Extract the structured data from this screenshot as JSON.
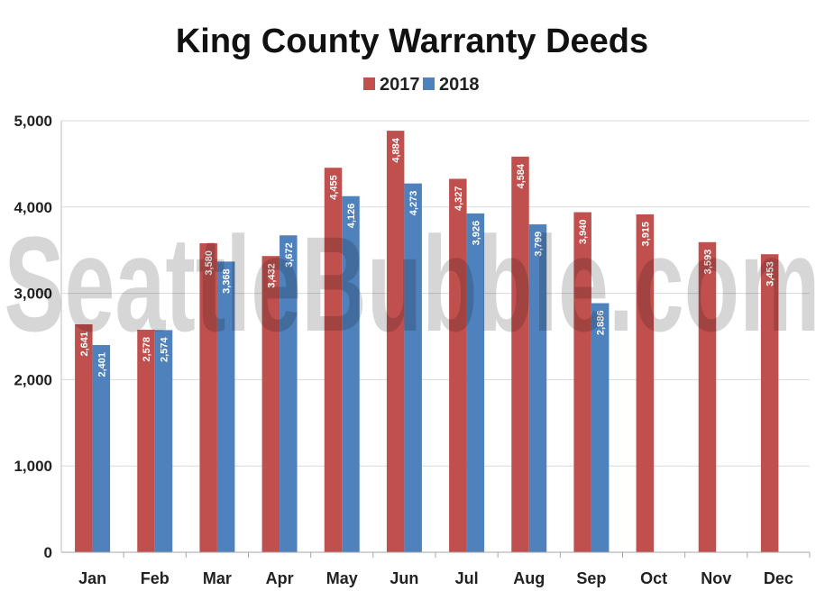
{
  "watermark": "SeattleBubble.com",
  "chart_data": {
    "type": "bar",
    "title": "King County Warranty Deeds",
    "xlabel": "",
    "ylabel": "",
    "ylim": [
      0,
      5000
    ],
    "yticks": [
      0,
      1000,
      2000,
      3000,
      4000,
      5000
    ],
    "ytick_labels": [
      "0",
      "1,000",
      "2,000",
      "3,000",
      "4,000",
      "5,000"
    ],
    "categories": [
      "Jan",
      "Feb",
      "Mar",
      "Apr",
      "May",
      "Jun",
      "Jul",
      "Aug",
      "Sep",
      "Oct",
      "Nov",
      "Dec"
    ],
    "legend_position": "top-center",
    "grid": true,
    "series": [
      {
        "name": "2017",
        "color": "#c0504d",
        "values": [
          2641,
          2578,
          3580,
          3432,
          4455,
          4884,
          4327,
          4584,
          3940,
          3915,
          3593,
          3453
        ],
        "labels": [
          "2,641",
          "2,578",
          "3,580",
          "3,432",
          "4,455",
          "4,884",
          "4,327",
          "4,584",
          "3,940",
          "3,915",
          "3,593",
          "3,453"
        ]
      },
      {
        "name": "2018",
        "color": "#4f81bd",
        "values": [
          2401,
          2574,
          3368,
          3672,
          4126,
          4273,
          3926,
          3799,
          2886,
          null,
          null,
          null
        ],
        "labels": [
          "2,401",
          "2,574",
          "3,368",
          "3,672",
          "4,126",
          "4,273",
          "3,926",
          "3,799",
          "2,886",
          null,
          null,
          null
        ]
      }
    ]
  }
}
